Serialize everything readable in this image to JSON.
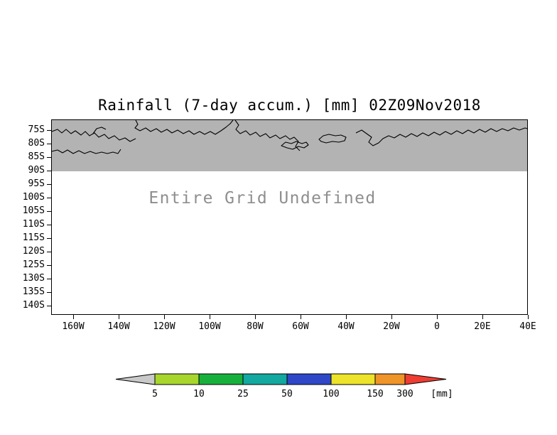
{
  "colors": {
    "background": "#ffffff",
    "masked_region": "#b3b3b3",
    "coastline": "#000000",
    "frame": "#000000",
    "undefined_text": "#8e8e8e"
  },
  "chart_data": {
    "type": "map",
    "title": "Rainfall (7-day accum.) [mm] 02Z09Nov2018",
    "status_message": "Entire Grid Undefined",
    "data_values": "none (entire grid undefined)",
    "y_ticks": [
      "75S",
      "80S",
      "85S",
      "90S",
      "95S",
      "100S",
      "105S",
      "110S",
      "115S",
      "120S",
      "125S",
      "130S",
      "135S",
      "140S"
    ],
    "x_ticks": [
      "160W",
      "140W",
      "120W",
      "100W",
      "80W",
      "60W",
      "40W",
      "20W",
      "0",
      "20E",
      "40E"
    ],
    "shaded_band": {
      "description": "gray masked region from top of plot down to 90S with coastline contours",
      "extent": "75S to 90S (approx)",
      "color": "#b3b3b3"
    },
    "colorbar": {
      "levels": [
        "5",
        "10",
        "25",
        "50",
        "100",
        "150",
        "300"
      ],
      "unit_label": "[mm]",
      "below_color": "#c9c9c9",
      "above_color": "#ee3d33",
      "segment_colors": [
        "#a8d62c",
        "#18b03c",
        "#13a8a0",
        "#2e48c8",
        "#ece32a",
        "#ef9429"
      ],
      "orientation": "horizontal",
      "position": "bottom"
    }
  }
}
